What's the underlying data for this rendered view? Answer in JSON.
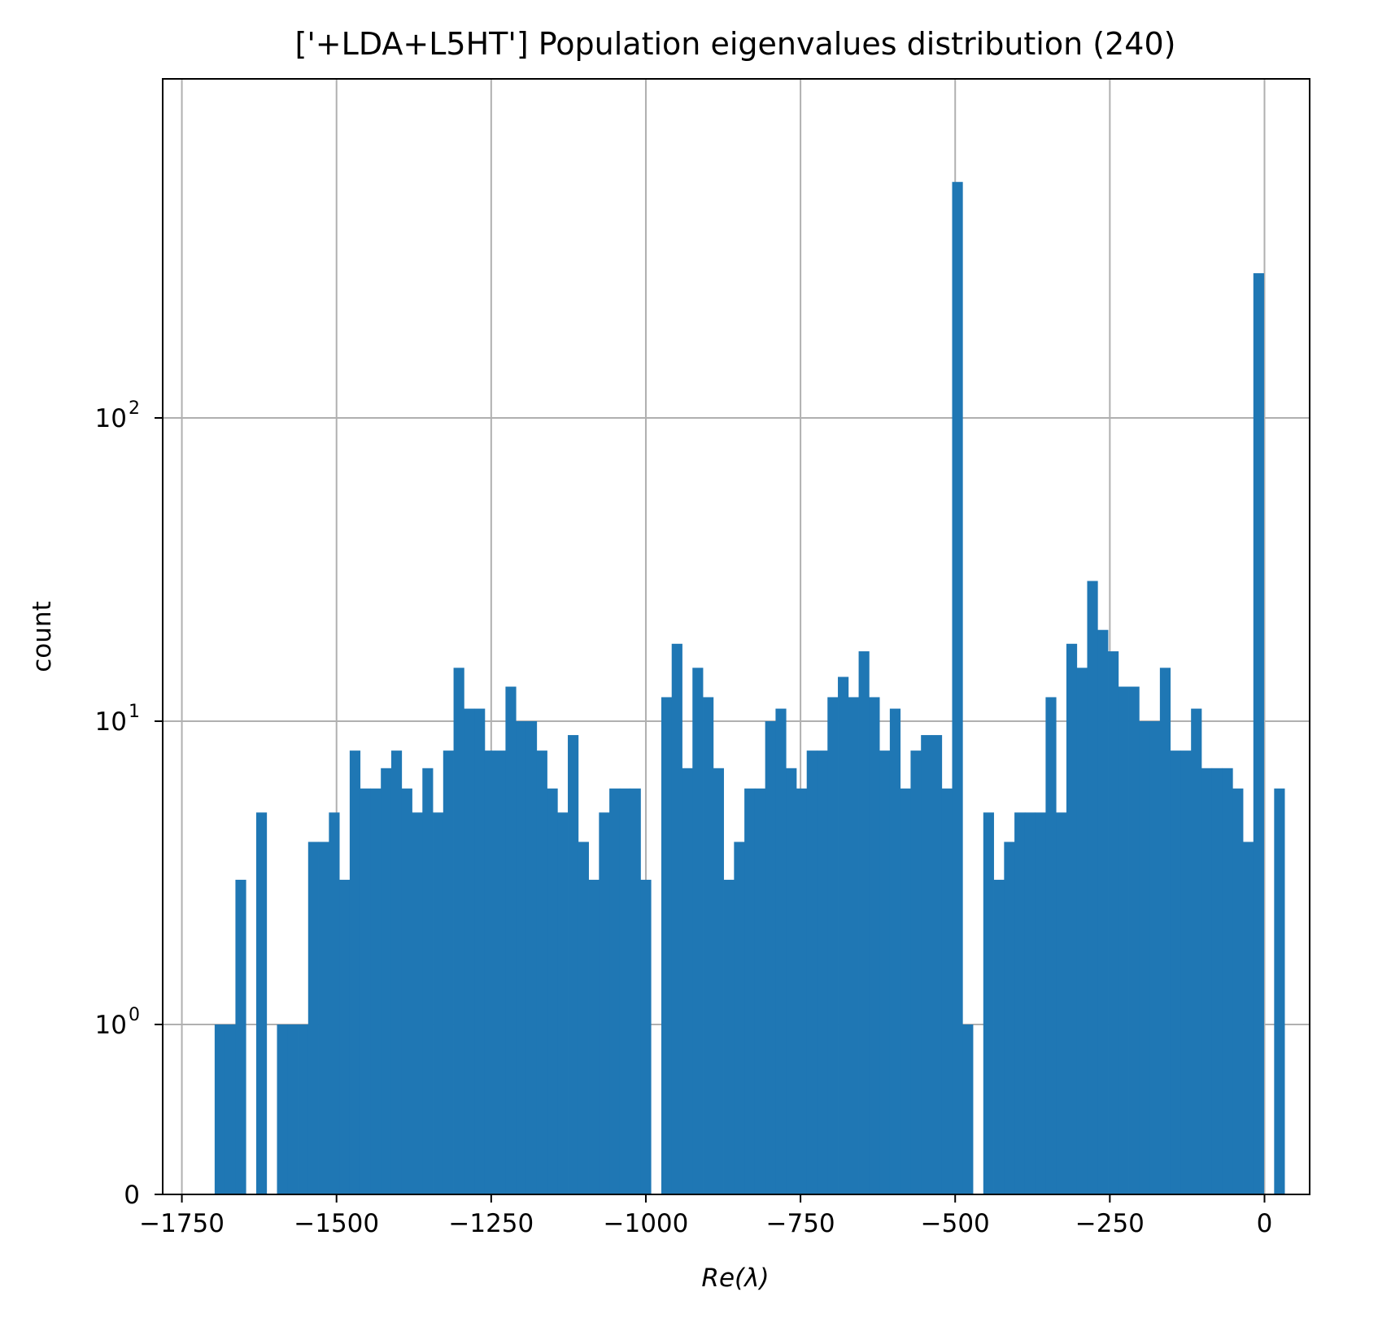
{
  "chart_data": {
    "type": "bar",
    "title": "['+LDA+L5HT'] Population eigenvalues distribution (240)",
    "xlabel": "Re(λ)",
    "ylabel": "count",
    "yscale": "symlog",
    "grid": true,
    "xlim": [
      -1781,
      73
    ],
    "x_ticks": [
      {
        "value": -1750,
        "label": "−1750"
      },
      {
        "value": -1500,
        "label": "−1500"
      },
      {
        "value": -1250,
        "label": "−1250"
      },
      {
        "value": -1000,
        "label": "−1000"
      },
      {
        "value": -750,
        "label": "−750"
      },
      {
        "value": -500,
        "label": "−500"
      },
      {
        "value": -250,
        "label": "−250"
      },
      {
        "value": 0,
        "label": "0"
      }
    ],
    "y_ticks": [
      {
        "value": 0,
        "base": "0",
        "exp": ""
      },
      {
        "value": 1,
        "base": "10",
        "exp": "0"
      },
      {
        "value": 10,
        "base": "10",
        "exp": "1"
      },
      {
        "value": 100,
        "base": "10",
        "exp": "2"
      }
    ],
    "bin_start": -1697,
    "bin_width": 16.79,
    "values": [
      1,
      1,
      3,
      0,
      5,
      0,
      1,
      1,
      1,
      4,
      4,
      5,
      3,
      8,
      6,
      6,
      7,
      8,
      6,
      5,
      7,
      5,
      8,
      15,
      11,
      11,
      8,
      8,
      13,
      10,
      10,
      8,
      6,
      5,
      9,
      4,
      3,
      5,
      6,
      6,
      6,
      3,
      0,
      12,
      18,
      7,
      15,
      12,
      7,
      3,
      4,
      6,
      6,
      10,
      11,
      7,
      6,
      8,
      8,
      12,
      14,
      12,
      17,
      12,
      8,
      11,
      6,
      8,
      9,
      9,
      6,
      600,
      1,
      0,
      5,
      3,
      4,
      5,
      5,
      5,
      12,
      5,
      18,
      15,
      29,
      20,
      17,
      13,
      13,
      10,
      10,
      15,
      8,
      8,
      11,
      7,
      7,
      7,
      6,
      4,
      300,
      0,
      6
    ]
  }
}
